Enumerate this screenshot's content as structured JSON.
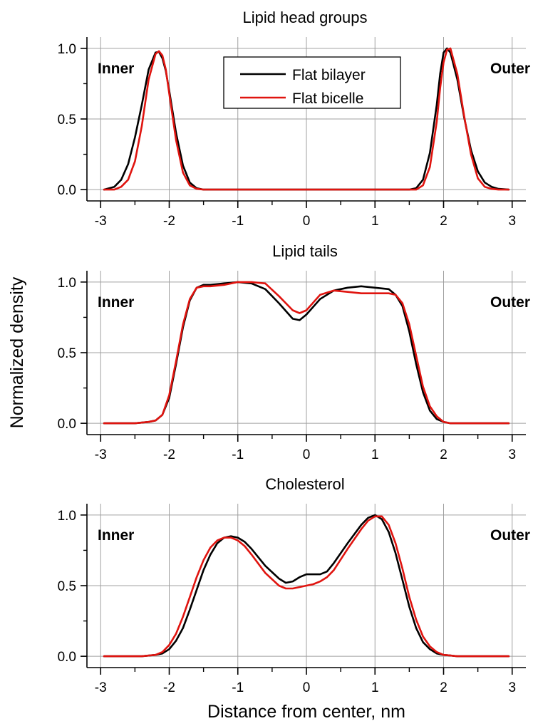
{
  "figure": {
    "ylabel": "Normalized density",
    "xlabel": "Distance from center, nm"
  },
  "legend": {
    "placement": "top-center of first panel",
    "entries": [
      {
        "label": "Flat bilayer",
        "color": "#000000"
      },
      {
        "label": "Flat bicelle",
        "color": "#e0140f"
      }
    ]
  },
  "chart_data": [
    {
      "type": "line",
      "title": "Lipid head groups",
      "annotations": [
        "Inner",
        "Outer"
      ],
      "xlim": [
        -3.2,
        3.2
      ],
      "ylim": [
        -0.08,
        1.08
      ],
      "xticks": [
        -3,
        -2,
        -1,
        0,
        1,
        2,
        3
      ],
      "xtick_labels": [
        "-3",
        "-2",
        "-1",
        "0",
        "1",
        "2",
        "3"
      ],
      "yticks": [
        0.0,
        0.5,
        1.0
      ],
      "ytick_labels": [
        "0.0",
        "0.5",
        "1.0"
      ],
      "grid": true,
      "series": [
        {
          "name": "Flat bilayer",
          "color": "#000000",
          "x": [
            -2.95,
            -2.8,
            -2.7,
            -2.6,
            -2.5,
            -2.4,
            -2.3,
            -2.2,
            -2.15,
            -2.1,
            -2.05,
            -2.0,
            -1.9,
            -1.8,
            -1.7,
            -1.6,
            -1.5,
            -1.4,
            -1.3,
            -1.0,
            -0.5,
            0.0,
            0.5,
            1.0,
            1.3,
            1.4,
            1.5,
            1.6,
            1.7,
            1.8,
            1.9,
            1.95,
            2.0,
            2.05,
            2.1,
            2.2,
            2.3,
            2.4,
            2.5,
            2.6,
            2.7,
            2.8,
            2.95
          ],
          "y": [
            0.0,
            0.02,
            0.07,
            0.18,
            0.37,
            0.6,
            0.85,
            0.97,
            0.975,
            0.93,
            0.84,
            0.7,
            0.4,
            0.17,
            0.05,
            0.01,
            0.0,
            0.0,
            0.0,
            0.0,
            0.0,
            0.0,
            0.0,
            0.0,
            0.0,
            0.0,
            0.0,
            0.01,
            0.07,
            0.26,
            0.6,
            0.82,
            0.97,
            1.0,
            0.97,
            0.78,
            0.51,
            0.28,
            0.13,
            0.05,
            0.02,
            0.005,
            0.0
          ]
        },
        {
          "name": "Flat bicelle",
          "color": "#e0140f",
          "x": [
            -2.95,
            -2.8,
            -2.7,
            -2.6,
            -2.5,
            -2.4,
            -2.3,
            -2.2,
            -2.15,
            -2.1,
            -2.05,
            -2.0,
            -1.9,
            -1.8,
            -1.7,
            -1.6,
            -1.5,
            -1.4,
            -1.3,
            -1.0,
            -0.5,
            0.0,
            0.5,
            1.0,
            1.3,
            1.4,
            1.5,
            1.6,
            1.7,
            1.8,
            1.9,
            1.95,
            2.0,
            2.05,
            2.1,
            2.2,
            2.3,
            2.4,
            2.5,
            2.6,
            2.7,
            2.8,
            2.95
          ],
          "y": [
            0.0,
            0.0,
            0.02,
            0.07,
            0.2,
            0.45,
            0.78,
            0.96,
            0.98,
            0.95,
            0.85,
            0.68,
            0.35,
            0.12,
            0.03,
            0.005,
            0.0,
            0.0,
            0.0,
            0.0,
            0.0,
            0.0,
            0.0,
            0.0,
            0.0,
            0.0,
            0.0,
            0.0,
            0.03,
            0.16,
            0.48,
            0.72,
            0.9,
            0.99,
            1.0,
            0.82,
            0.52,
            0.25,
            0.08,
            0.02,
            0.005,
            0.0,
            0.0
          ]
        }
      ]
    },
    {
      "type": "line",
      "title": "Lipid tails",
      "annotations": [
        "Inner",
        "Outer"
      ],
      "xlim": [
        -3.2,
        3.2
      ],
      "ylim": [
        -0.08,
        1.08
      ],
      "xticks": [
        -3,
        -2,
        -1,
        0,
        1,
        2,
        3
      ],
      "xtick_labels": [
        "-3",
        "-2",
        "-1",
        "0",
        "1",
        "2",
        "3"
      ],
      "yticks": [
        0.0,
        0.5,
        1.0
      ],
      "ytick_labels": [
        "0.0",
        "0.5",
        "1.0"
      ],
      "grid": true,
      "series": [
        {
          "name": "Flat bilayer",
          "color": "#000000",
          "x": [
            -2.95,
            -2.5,
            -2.3,
            -2.2,
            -2.1,
            -2.0,
            -1.9,
            -1.8,
            -1.7,
            -1.6,
            -1.5,
            -1.4,
            -1.2,
            -1.0,
            -0.8,
            -0.6,
            -0.4,
            -0.2,
            -0.1,
            0.0,
            0.2,
            0.4,
            0.6,
            0.8,
            1.0,
            1.2,
            1.3,
            1.4,
            1.5,
            1.6,
            1.7,
            1.8,
            1.9,
            2.0,
            2.1,
            2.3,
            2.95
          ],
          "y": [
            0.0,
            0.0,
            0.01,
            0.02,
            0.06,
            0.18,
            0.42,
            0.68,
            0.87,
            0.96,
            0.98,
            0.98,
            0.99,
            1.0,
            0.99,
            0.95,
            0.85,
            0.74,
            0.73,
            0.77,
            0.88,
            0.94,
            0.96,
            0.97,
            0.96,
            0.95,
            0.91,
            0.83,
            0.65,
            0.42,
            0.22,
            0.09,
            0.03,
            0.01,
            0.0,
            0.0,
            0.0
          ]
        },
        {
          "name": "Flat bicelle",
          "color": "#e0140f",
          "x": [
            -2.95,
            -2.5,
            -2.3,
            -2.2,
            -2.1,
            -2.0,
            -1.9,
            -1.8,
            -1.7,
            -1.6,
            -1.5,
            -1.4,
            -1.2,
            -1.0,
            -0.8,
            -0.6,
            -0.4,
            -0.2,
            -0.1,
            0.0,
            0.2,
            0.4,
            0.6,
            0.8,
            1.0,
            1.2,
            1.3,
            1.4,
            1.5,
            1.6,
            1.7,
            1.8,
            1.9,
            2.0,
            2.1,
            2.3,
            2.95
          ],
          "y": [
            0.0,
            0.0,
            0.01,
            0.02,
            0.06,
            0.2,
            0.44,
            0.7,
            0.88,
            0.96,
            0.97,
            0.97,
            0.98,
            1.0,
            1.0,
            0.99,
            0.9,
            0.8,
            0.78,
            0.8,
            0.91,
            0.94,
            0.93,
            0.92,
            0.92,
            0.92,
            0.91,
            0.85,
            0.7,
            0.48,
            0.26,
            0.12,
            0.05,
            0.01,
            0.0,
            0.0,
            0.0
          ]
        }
      ]
    },
    {
      "type": "line",
      "title": "Cholesterol",
      "annotations": [
        "Inner",
        "Outer"
      ],
      "xlim": [
        -3.2,
        3.2
      ],
      "ylim": [
        -0.08,
        1.08
      ],
      "xticks": [
        -3,
        -2,
        -1,
        0,
        1,
        2,
        3
      ],
      "xtick_labels": [
        "-3",
        "-2",
        "-1",
        "0",
        "1",
        "2",
        "3"
      ],
      "yticks": [
        0.0,
        0.5,
        1.0
      ],
      "ytick_labels": [
        "0.0",
        "0.5",
        "1.0"
      ],
      "grid": true,
      "series": [
        {
          "name": "Flat bilayer",
          "color": "#000000",
          "x": [
            -2.95,
            -2.4,
            -2.2,
            -2.1,
            -2.0,
            -1.9,
            -1.8,
            -1.7,
            -1.6,
            -1.5,
            -1.4,
            -1.3,
            -1.2,
            -1.1,
            -1.0,
            -0.9,
            -0.8,
            -0.6,
            -0.4,
            -0.3,
            -0.2,
            -0.1,
            0.0,
            0.1,
            0.2,
            0.3,
            0.4,
            0.6,
            0.8,
            0.9,
            1.0,
            1.1,
            1.2,
            1.3,
            1.4,
            1.5,
            1.6,
            1.7,
            1.8,
            1.9,
            2.0,
            2.1,
            2.2,
            2.95
          ],
          "y": [
            0.0,
            0.0,
            0.01,
            0.02,
            0.05,
            0.11,
            0.2,
            0.33,
            0.47,
            0.61,
            0.72,
            0.8,
            0.84,
            0.85,
            0.84,
            0.81,
            0.76,
            0.64,
            0.55,
            0.52,
            0.53,
            0.56,
            0.58,
            0.58,
            0.58,
            0.6,
            0.66,
            0.8,
            0.93,
            0.98,
            1.0,
            0.97,
            0.88,
            0.73,
            0.54,
            0.35,
            0.2,
            0.1,
            0.05,
            0.02,
            0.01,
            0.005,
            0.0,
            0.0
          ]
        },
        {
          "name": "Flat bicelle",
          "color": "#e0140f",
          "x": [
            -2.95,
            -2.4,
            -2.2,
            -2.1,
            -2.0,
            -1.9,
            -1.8,
            -1.7,
            -1.6,
            -1.5,
            -1.4,
            -1.3,
            -1.2,
            -1.1,
            -1.0,
            -0.9,
            -0.8,
            -0.6,
            -0.4,
            -0.3,
            -0.2,
            -0.1,
            0.0,
            0.1,
            0.2,
            0.3,
            0.4,
            0.6,
            0.8,
            0.9,
            1.0,
            1.1,
            1.2,
            1.3,
            1.4,
            1.5,
            1.6,
            1.7,
            1.8,
            1.9,
            2.0,
            2.1,
            2.2,
            2.95
          ],
          "y": [
            0.0,
            0.0,
            0.01,
            0.03,
            0.08,
            0.16,
            0.28,
            0.42,
            0.56,
            0.68,
            0.77,
            0.82,
            0.84,
            0.84,
            0.82,
            0.78,
            0.72,
            0.59,
            0.5,
            0.48,
            0.48,
            0.49,
            0.5,
            0.51,
            0.53,
            0.56,
            0.61,
            0.76,
            0.9,
            0.96,
            0.99,
            0.99,
            0.93,
            0.8,
            0.62,
            0.42,
            0.26,
            0.14,
            0.07,
            0.03,
            0.01,
            0.005,
            0.0,
            0.0
          ]
        }
      ]
    }
  ]
}
